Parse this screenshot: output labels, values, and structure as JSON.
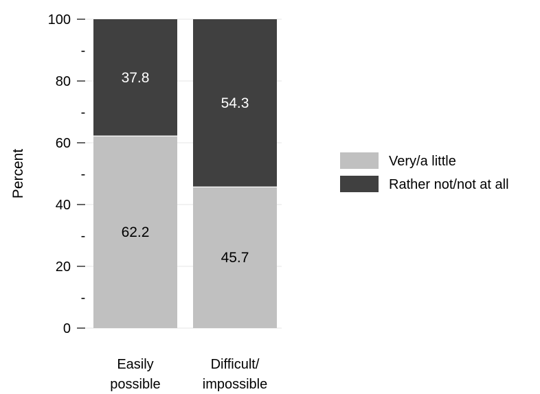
{
  "chart_data": {
    "type": "bar",
    "stacked": true,
    "categories": [
      [
        "Easily",
        "possible"
      ],
      [
        "Difficult/",
        "impossible"
      ]
    ],
    "series": [
      {
        "name": "Very/a little",
        "values": [
          62.2,
          45.7
        ],
        "color": "#c0c0c0",
        "label_color": "#000000"
      },
      {
        "name": "Rather not/not at all",
        "values": [
          37.8,
          54.3
        ],
        "color": "#404040",
        "label_color": "#ffffff"
      }
    ],
    "data_labels": [
      [
        "62.2",
        "45.7"
      ],
      [
        "37.8",
        "54.3"
      ]
    ],
    "ylabel": "Percent",
    "ylim": [
      0,
      100
    ],
    "yticks": [
      0,
      20,
      40,
      60,
      80,
      100
    ],
    "minor_yticks": [
      10,
      30,
      50,
      70,
      90
    ],
    "ytick_labels": [
      "0",
      "20",
      "40",
      "60",
      "80",
      "100"
    ],
    "minor_tick_label": "-",
    "grid": true,
    "legend_position": "right"
  }
}
